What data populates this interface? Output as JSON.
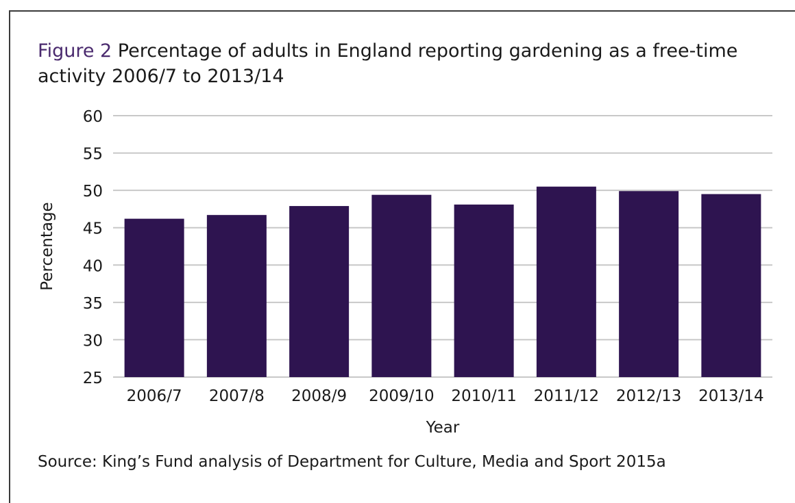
{
  "figure": {
    "label": "Figure 2",
    "title": "Percentage of adults in England reporting gardening as a free-time activity 2006/7 to 2013/14",
    "source": "Source: King’s Fund analysis of Department for Culture, Media and Sport 2015a"
  },
  "chart_data": {
    "type": "bar",
    "categories": [
      "2006/7",
      "2007/8",
      "2008/9",
      "2009/10",
      "2010/11",
      "2011/12",
      "2012/13",
      "2013/14"
    ],
    "values": [
      46.2,
      46.7,
      47.9,
      49.4,
      48.1,
      50.5,
      49.9,
      49.5
    ],
    "xlabel": "Year",
    "ylabel": "Percentage",
    "ylim": [
      25,
      60
    ],
    "yticks": [
      25,
      30,
      35,
      40,
      45,
      50,
      55,
      60
    ],
    "grid": true,
    "bar_color": "#2e1450",
    "grid_color": "#c8c8c8"
  }
}
